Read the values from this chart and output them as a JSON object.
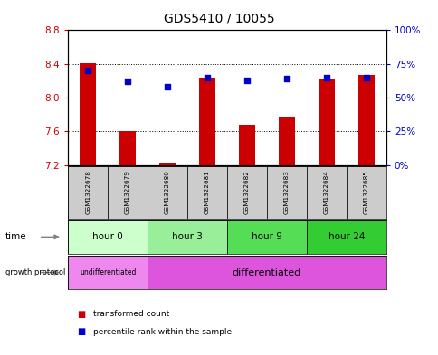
{
  "title": "GDS5410 / 10055",
  "samples": [
    "GSM1322678",
    "GSM1322679",
    "GSM1322680",
    "GSM1322681",
    "GSM1322682",
    "GSM1322683",
    "GSM1322684",
    "GSM1322685"
  ],
  "transformed_count": [
    8.41,
    7.6,
    7.23,
    8.24,
    7.68,
    7.77,
    8.23,
    8.27
  ],
  "percentile_rank": [
    70,
    62,
    58,
    65,
    63,
    64,
    65,
    65
  ],
  "ylim_left": [
    7.2,
    8.8
  ],
  "ylim_right": [
    0,
    100
  ],
  "yticks_left": [
    7.2,
    7.6,
    8.0,
    8.4,
    8.8
  ],
  "yticks_right": [
    0,
    25,
    50,
    75,
    100
  ],
  "ytick_labels_right": [
    "0%",
    "25%",
    "50%",
    "75%",
    "100%"
  ],
  "bar_color": "#cc0000",
  "dot_color": "#0000cc",
  "bar_bottom": 7.2,
  "time_groups": [
    {
      "label": "hour 0",
      "start": 0,
      "end": 2,
      "color": "#ccffcc"
    },
    {
      "label": "hour 3",
      "start": 2,
      "end": 4,
      "color": "#99ee99"
    },
    {
      "label": "hour 9",
      "start": 4,
      "end": 6,
      "color": "#55dd55"
    },
    {
      "label": "hour 24",
      "start": 6,
      "end": 8,
      "color": "#33cc33"
    }
  ],
  "growth_protocol_groups": [
    {
      "label": "undifferentiated",
      "start": 0,
      "end": 2,
      "color": "#ee88ee"
    },
    {
      "label": "differentiated",
      "start": 2,
      "end": 8,
      "color": "#dd55dd"
    }
  ],
  "sample_bg_color": "#cccccc",
  "left_tick_color": "#cc0000",
  "right_tick_color": "#0000cc"
}
